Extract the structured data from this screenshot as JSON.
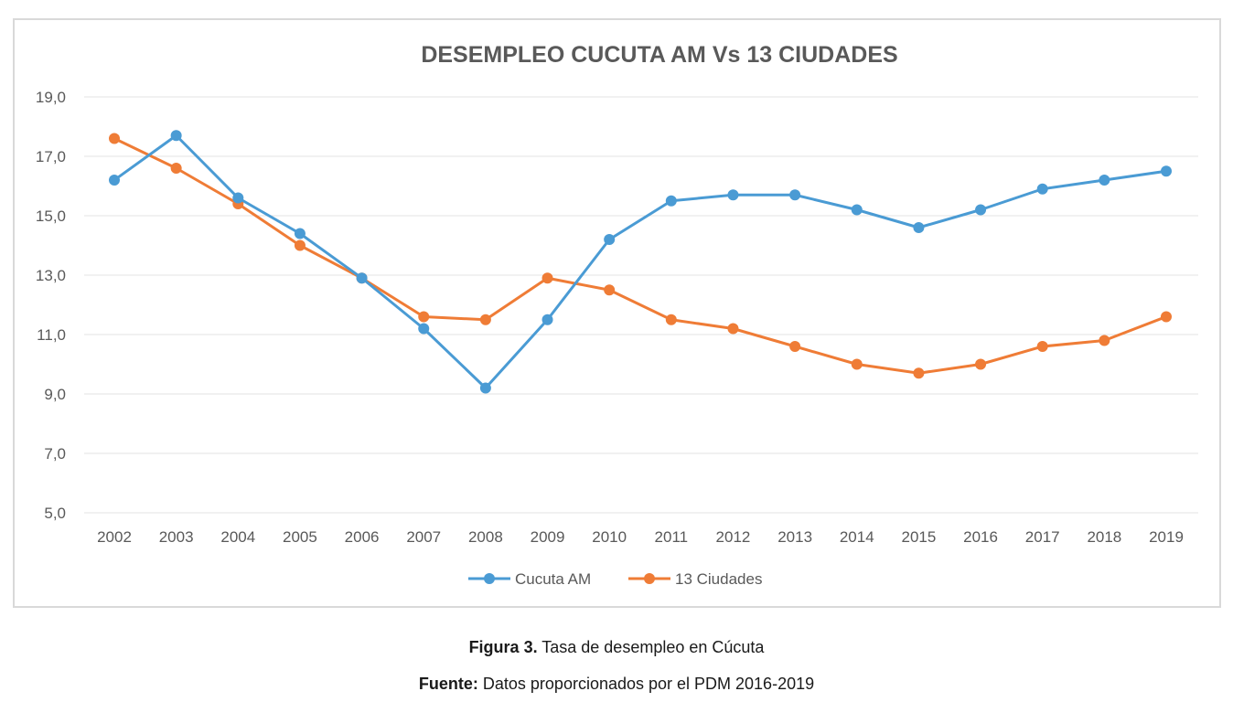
{
  "chart_data": {
    "type": "line",
    "title": "DESEMPLEO CUCUTA AM Vs 13 CIUDADES",
    "xlabel": "",
    "ylabel": "",
    "categories": [
      "2002",
      "2003",
      "2004",
      "2005",
      "2006",
      "2007",
      "2008",
      "2009",
      "2010",
      "2011",
      "2012",
      "2013",
      "2014",
      "2015",
      "2016",
      "2017",
      "2018",
      "2019"
    ],
    "ylim": [
      5,
      19
    ],
    "yticks": [
      "5,0",
      "7,0",
      "9,0",
      "11,0",
      "13,0",
      "15,0",
      "17,0",
      "19,0"
    ],
    "ytick_values": [
      5,
      7,
      9,
      11,
      13,
      15,
      17,
      19
    ],
    "grid": true,
    "legend": "bottom",
    "series": [
      {
        "name": "Cucuta AM",
        "color": "#4a9bd4",
        "values": [
          16.2,
          17.7,
          15.6,
          14.4,
          12.9,
          11.2,
          9.2,
          11.5,
          14.2,
          15.5,
          15.7,
          15.7,
          15.2,
          14.6,
          15.2,
          15.9,
          16.2,
          16.5
        ]
      },
      {
        "name": "13 Ciudades",
        "color": "#ef7c36",
        "values": [
          17.6,
          16.6,
          15.4,
          14.0,
          12.9,
          11.6,
          11.5,
          12.9,
          12.5,
          11.5,
          11.2,
          10.6,
          10.0,
          9.7,
          10.0,
          10.6,
          10.8,
          11.6
        ]
      }
    ]
  },
  "caption": {
    "figure_label": "Figura 3.",
    "figure_text": " Tasa de desempleo en Cúcuta",
    "source_label": "Fuente:",
    "source_text": " Datos proporcionados por el PDM 2016-2019"
  }
}
